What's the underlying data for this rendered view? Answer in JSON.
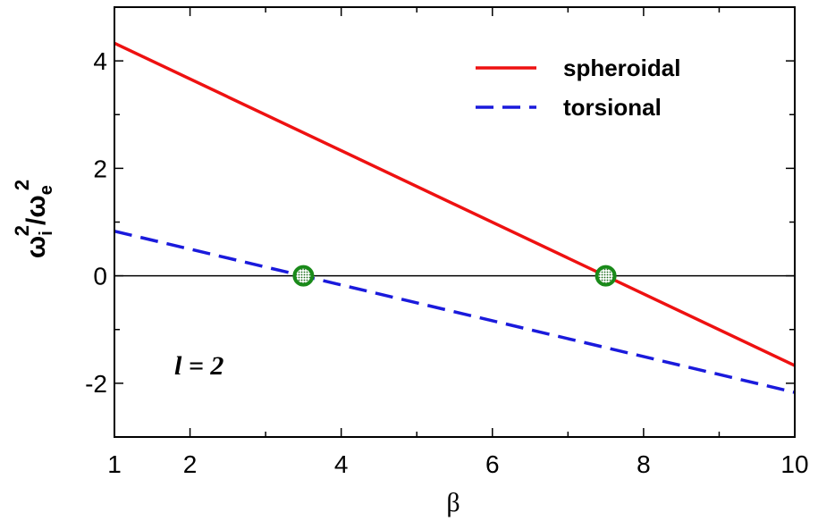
{
  "chart_data": {
    "type": "line",
    "xlabel": "β",
    "ylabel": {
      "omega": "ω",
      "sub_i": "i",
      "sup1": "2",
      "slash": "/",
      "sub_e": "e",
      "sup2": "2"
    },
    "xlim": [
      1,
      10
    ],
    "ylim": [
      -3,
      5
    ],
    "x_ticks": [
      1,
      2,
      4,
      6,
      8,
      10
    ],
    "x_tick_labels": [
      "1",
      "2",
      "4",
      "6",
      "8",
      "10"
    ],
    "x_minor_step": 1,
    "y_ticks": [
      -2,
      0,
      2,
      4
    ],
    "y_tick_labels": [
      "-2",
      "0",
      "2",
      "4"
    ],
    "y_minor_step": 1,
    "grid": false,
    "zero_line": true,
    "legend_position": "top-right",
    "annotation": "l = 2",
    "series": [
      {
        "name": "spheroidal",
        "style": "solid",
        "color": "#ee1111",
        "x": [
          1,
          10
        ],
        "y": [
          4.33,
          -1.67
        ]
      },
      {
        "name": "torsional",
        "style": "dashed",
        "color": "#1a1adc",
        "x": [
          1,
          10
        ],
        "y": [
          0.83,
          -2.17
        ]
      }
    ],
    "markers": [
      {
        "x": 3.5,
        "y": 0,
        "color": "#1a8a1a"
      },
      {
        "x": 7.5,
        "y": 0,
        "color": "#1a8a1a"
      }
    ]
  }
}
